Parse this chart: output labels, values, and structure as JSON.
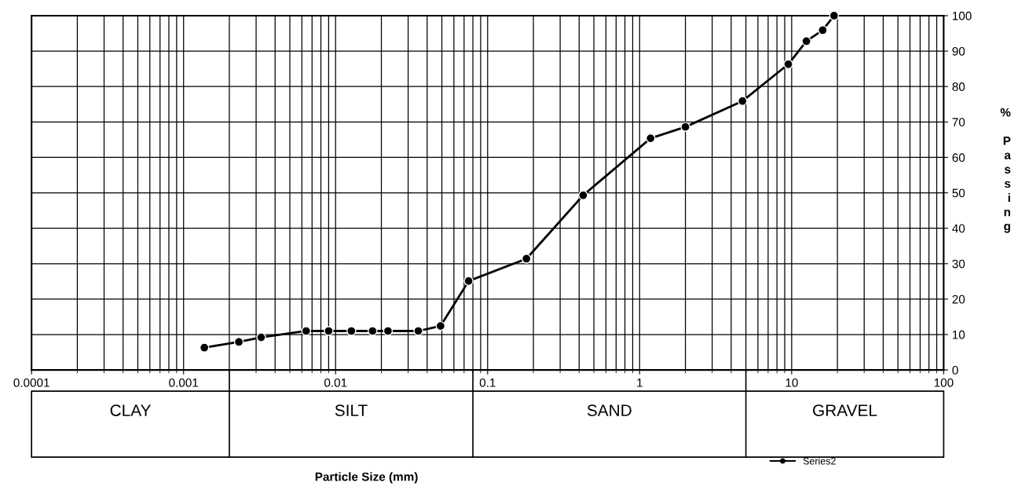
{
  "chart_data": {
    "type": "line",
    "ylabel": "% Passing",
    "x": [
      0.00137,
      0.00231,
      0.00324,
      0.0064,
      0.009,
      0.0127,
      0.0175,
      0.0221,
      0.035,
      0.049,
      0.075,
      0.18,
      0.425,
      1.18,
      2,
      4.75,
      9.5,
      12.5,
      16,
      19
    ],
    "series": [
      {
        "name": "Series2",
        "color": "#000000",
        "values": [
          6.3,
          7.9,
          9.2,
          11.0,
          11.0,
          11.0,
          11.0,
          11.0,
          11.0,
          12.4,
          25.1,
          31.4,
          49.3,
          65.4,
          68.6,
          75.9,
          86.3,
          92.8,
          95.9,
          100
        ]
      }
    ],
    "log": "x",
    "xlim": [
      0.0001,
      100
    ],
    "xticks": [
      0.0001,
      0.001,
      0.01,
      0.1,
      1,
      10,
      100
    ],
    "ylim": [
      0,
      100
    ],
    "yticks": [
      0,
      10,
      20,
      30,
      40,
      50,
      60,
      70,
      80,
      90,
      100
    ],
    "annotations": [
      "Particle Size (mm)",
      "CLAY",
      "SILT",
      "SAND",
      "GRAVEL"
    ],
    "ref_lines": [
      {
        "axis": "x",
        "value": 0.002
      },
      {
        "axis": "x",
        "value": 0.08
      },
      {
        "axis": "x",
        "value": 5
      }
    ],
    "grid": true,
    "legend": "bottom right",
    "marker": "circle",
    "line_style": "solid"
  }
}
